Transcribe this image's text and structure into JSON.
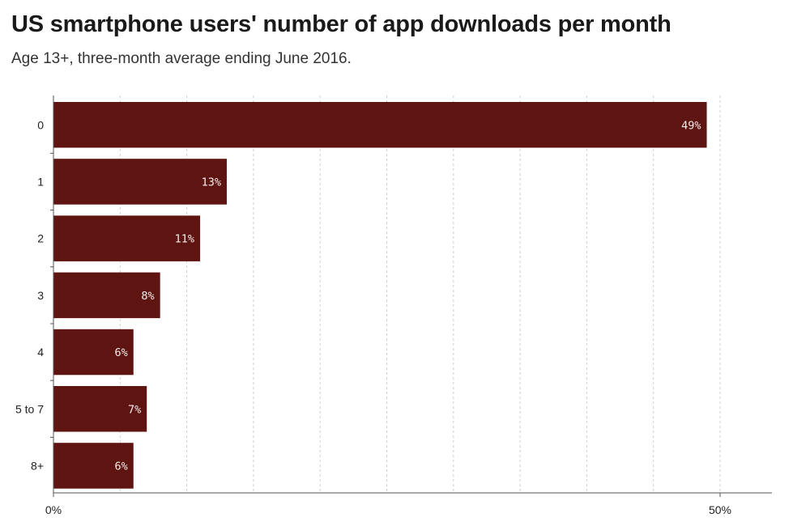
{
  "title": "US smartphone users' number of app downloads per month",
  "subtitle": "Age 13+, three-month average ending June 2016.",
  "chart_data": {
    "type": "bar",
    "orientation": "horizontal",
    "categories": [
      "0",
      "1",
      "2",
      "3",
      "4",
      "5 to 7",
      "8+"
    ],
    "values": [
      49,
      13,
      11,
      8,
      6,
      7,
      6
    ],
    "data_labels": [
      "49%",
      "13%",
      "11%",
      "8%",
      "6%",
      "7%",
      "6%"
    ],
    "x_ticks": [
      0,
      50
    ],
    "x_tick_labels": [
      "0%",
      "50%"
    ],
    "xlim": [
      0,
      54
    ],
    "grid": "vertical dashed",
    "bar_color": "#5e1512",
    "label_color": "#f3ecec"
  }
}
